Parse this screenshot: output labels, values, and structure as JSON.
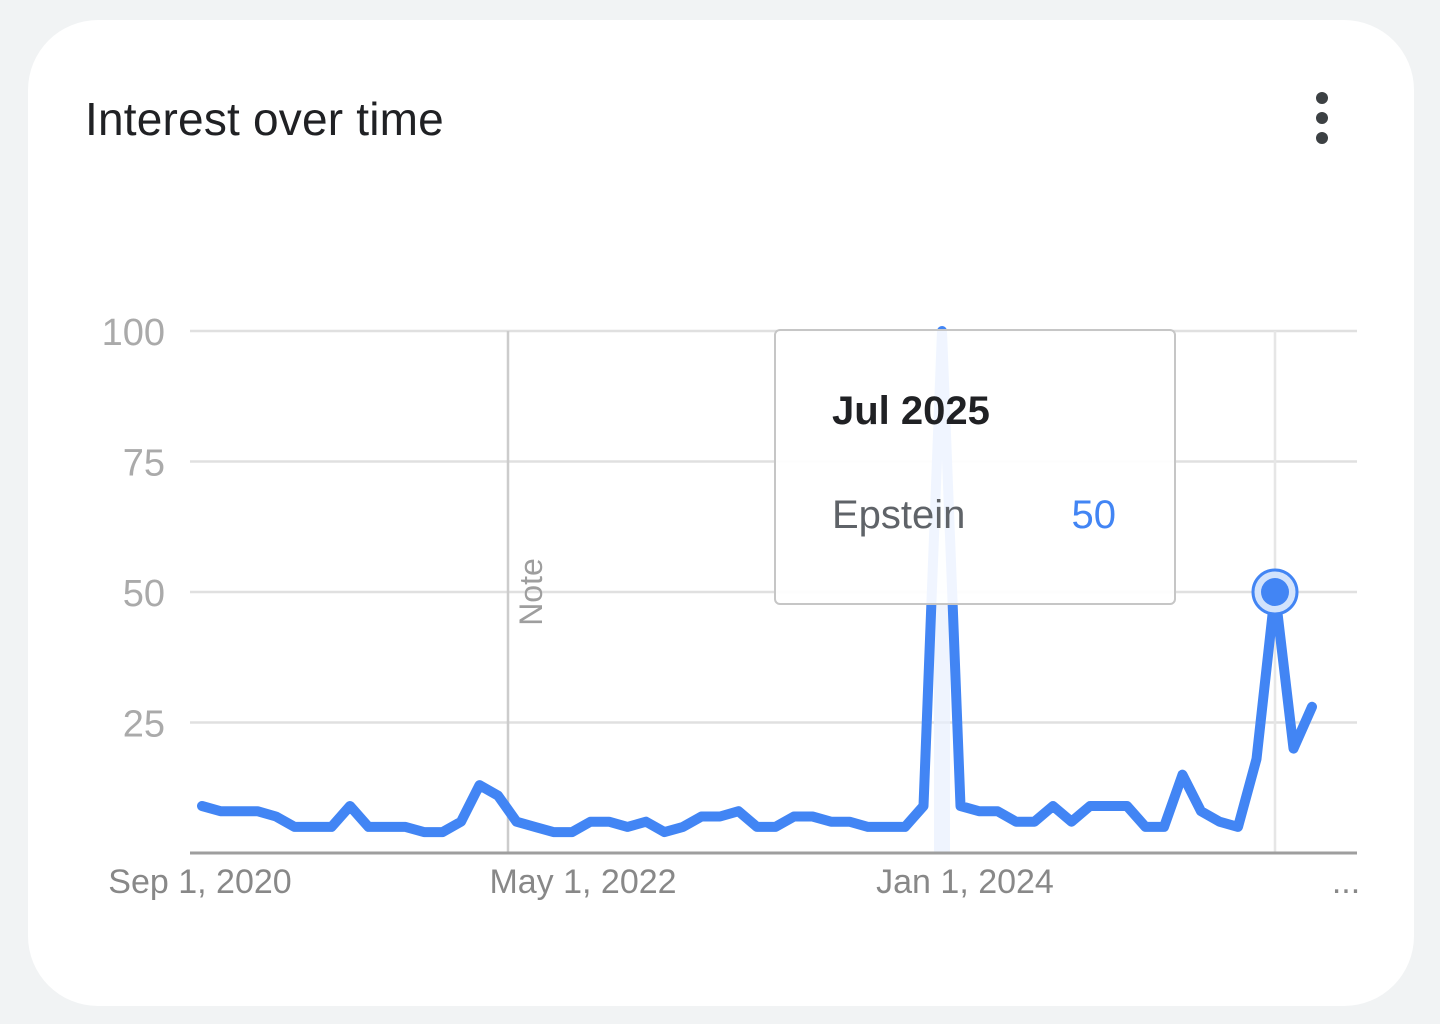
{
  "card": {
    "title": "Interest over time",
    "menu_icon": "more-vert-icon"
  },
  "chart_data": {
    "type": "line",
    "title": "Interest over time",
    "x_ticks": [
      "Sep 1, 2020",
      "May 1, 2022",
      "Jan 1, 2024",
      "..."
    ],
    "y_ticks": [
      100,
      75,
      50,
      25
    ],
    "ylim": [
      0,
      100
    ],
    "grid": true,
    "annotations": [
      {
        "label": "Note",
        "x": "May 1, 2022"
      }
    ],
    "series": [
      {
        "name": "Epstein",
        "color": "#4285f4",
        "x": [
          "2020-09",
          "2020-10",
          "2020-11",
          "2020-12",
          "2021-01",
          "2021-02",
          "2021-03",
          "2021-04",
          "2021-05",
          "2021-06",
          "2021-07",
          "2021-08",
          "2021-09",
          "2021-10",
          "2021-11",
          "2021-12",
          "2022-01",
          "2022-02",
          "2022-03",
          "2022-04",
          "2022-05",
          "2022-06",
          "2022-07",
          "2022-08",
          "2022-09",
          "2022-10",
          "2022-11",
          "2022-12",
          "2023-01",
          "2023-02",
          "2023-03",
          "2023-04",
          "2023-05",
          "2023-06",
          "2023-07",
          "2023-08",
          "2023-09",
          "2023-10",
          "2023-11",
          "2023-12",
          "2024-01",
          "2024-02",
          "2024-03",
          "2024-04",
          "2024-05",
          "2024-06",
          "2024-07",
          "2024-08",
          "2024-09",
          "2024-10",
          "2024-11",
          "2024-12",
          "2025-01",
          "2025-02",
          "2025-03",
          "2025-04",
          "2025-05",
          "2025-06",
          "2025-07",
          "2025-08",
          "2025-09"
        ],
        "values": [
          9,
          8,
          8,
          8,
          7,
          5,
          5,
          5,
          9,
          5,
          5,
          5,
          4,
          4,
          6,
          13,
          11,
          6,
          5,
          4,
          4,
          6,
          6,
          5,
          6,
          4,
          5,
          7,
          7,
          8,
          5,
          5,
          7,
          7,
          6,
          6,
          5,
          5,
          5,
          9,
          100,
          9,
          8,
          8,
          6,
          6,
          9,
          6,
          9,
          9,
          9,
          5,
          5,
          15,
          8,
          6,
          5,
          18,
          50,
          20,
          28
        ]
      }
    ]
  },
  "tooltip": {
    "date": "Jul 2025",
    "term": "Epstein",
    "value": "50"
  }
}
